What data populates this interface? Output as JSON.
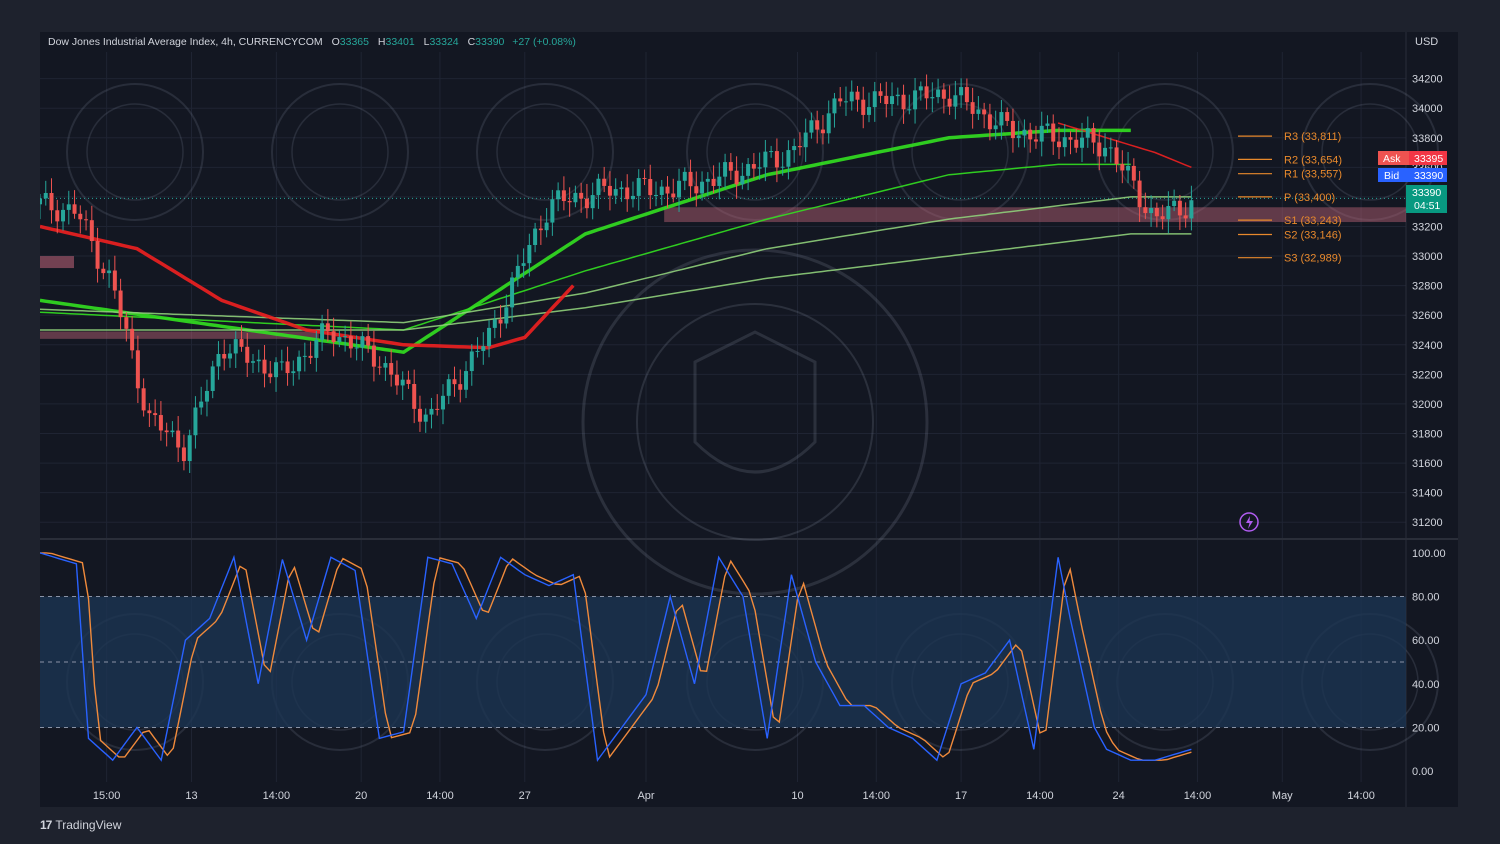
{
  "header": {
    "symbol": "Dow Jones Industrial Average Index, 4h, CURRENCYCOM",
    "open_label": "O",
    "open": "33365",
    "high_label": "H",
    "high": "33401",
    "low_label": "L",
    "low": "33324",
    "close_label": "C",
    "close": "33390",
    "change": "+27 (+0.08%)"
  },
  "currency": "USD",
  "quote": {
    "ask_label": "Ask",
    "ask": "33395",
    "bid_label": "Bid",
    "bid": "33390",
    "last": "33390",
    "countdown": "04:51"
  },
  "pivots": [
    {
      "label": "R3 (33,811)",
      "value": 33811
    },
    {
      "label": "R2 (33,654)",
      "value": 33654
    },
    {
      "label": "R1 (33,557)",
      "value": 33557
    },
    {
      "label": "P (33,400)",
      "value": 33400
    },
    {
      "label": "S1 (33,243)",
      "value": 33243
    },
    {
      "label": "S2 (33,146)",
      "value": 33146
    },
    {
      "label": "S3 (32,989)",
      "value": 32989
    }
  ],
  "x_ticks": [
    "15:00",
    "13",
    "14:00",
    "20",
    "14:00",
    "27",
    "Apr",
    "10",
    "14:00",
    "17",
    "14:00",
    "24",
    "14:00",
    "May",
    "14:00"
  ],
  "branding": {
    "name": "TradingView"
  },
  "colors": {
    "up": "#26a69a",
    "down": "#ef5350",
    "ma_green": "#33e020",
    "ma_red": "#ef2020",
    "pivot": "#e8892c",
    "stoch_k": "#2962ff",
    "stoch_d": "#f08a3b",
    "band": "#1c3552"
  },
  "chart_data": [
    {
      "type": "line",
      "title": "",
      "ylabel": "USD",
      "ylim": [
        31100,
        34380
      ],
      "y_ticks": [
        34200,
        34000,
        33800,
        33600,
        33400,
        33200,
        33000,
        32800,
        32600,
        32400,
        32200,
        32000,
        31800,
        31600,
        31400,
        31200
      ],
      "price_path": {
        "t": [
          0,
          3,
          6,
          9,
          12,
          15,
          20,
          24,
          28,
          32,
          37,
          42,
          47,
          52,
          57,
          62,
          66,
          70,
          75,
          80,
          84,
          88,
          92,
          96,
          100
        ],
        "close": [
          33350,
          33300,
          32800,
          31900,
          31700,
          32400,
          32200,
          32500,
          32300,
          31900,
          32450,
          33350,
          33450,
          33450,
          33550,
          33700,
          34050,
          34050,
          34100,
          33850,
          33800,
          33750,
          33250,
          33400,
          33390
        ]
      },
      "moving_averages": [
        {
          "color": "#33e020",
          "t": [
            0,
            30,
            45,
            60,
            75,
            84,
            90
          ],
          "value": [
            32700,
            32350,
            33150,
            33550,
            33800,
            33850,
            33850
          ]
        },
        {
          "color": "#33e020",
          "t": [
            0,
            30,
            45,
            60,
            75,
            84,
            90
          ],
          "value": [
            32620,
            32500,
            32900,
            33250,
            33550,
            33620,
            33620
          ]
        },
        {
          "color": "#8fcf7a",
          "t": [
            0,
            30,
            45,
            60,
            75,
            90,
            95
          ],
          "value": [
            32640,
            32550,
            32750,
            33050,
            33250,
            33400,
            33400
          ]
        },
        {
          "color": "#8fcf7a",
          "t": [
            0,
            30,
            45,
            60,
            75,
            90,
            95
          ],
          "value": [
            32500,
            32500,
            32650,
            32850,
            33000,
            33150,
            33150
          ]
        },
        {
          "color": "#ef2020",
          "t": [
            0,
            8,
            15,
            22,
            30,
            37,
            40,
            44
          ],
          "value": [
            33200,
            33050,
            32700,
            32500,
            32400,
            32380,
            32450,
            32800
          ]
        },
        {
          "color": "#ef2020",
          "t": [
            84,
            88,
            92,
            95
          ],
          "value": [
            33900,
            33800,
            33700,
            33600
          ]
        }
      ]
    },
    {
      "type": "line",
      "title": "",
      "ylim": [
        -5,
        105
      ],
      "y_ticks": [
        100,
        80,
        60,
        40,
        20,
        0
      ],
      "overbought": 80,
      "oversold": 20,
      "series": [
        {
          "t": [
            0,
            3,
            4,
            6,
            8,
            10,
            12,
            14,
            16,
            18,
            20,
            22,
            24,
            26,
            28,
            30,
            32,
            34,
            36,
            38,
            40,
            42,
            44,
            46,
            48,
            50,
            52,
            54,
            56,
            58,
            60,
            62,
            64,
            66,
            68,
            70,
            72,
            74,
            76,
            78,
            80,
            82,
            84,
            85,
            87,
            88,
            90,
            92,
            95
          ],
          "values": [
            100,
            95,
            15,
            5,
            20,
            5,
            60,
            70,
            98,
            40,
            97,
            60,
            98,
            92,
            15,
            18,
            98,
            95,
            70,
            98,
            90,
            85,
            90,
            5,
            20,
            35,
            80,
            40,
            98,
            80,
            15,
            90,
            50,
            30,
            30,
            20,
            15,
            5,
            40,
            45,
            60,
            10,
            98,
            70,
            20,
            10,
            5,
            5,
            10
          ]
        }
      ]
    }
  ]
}
